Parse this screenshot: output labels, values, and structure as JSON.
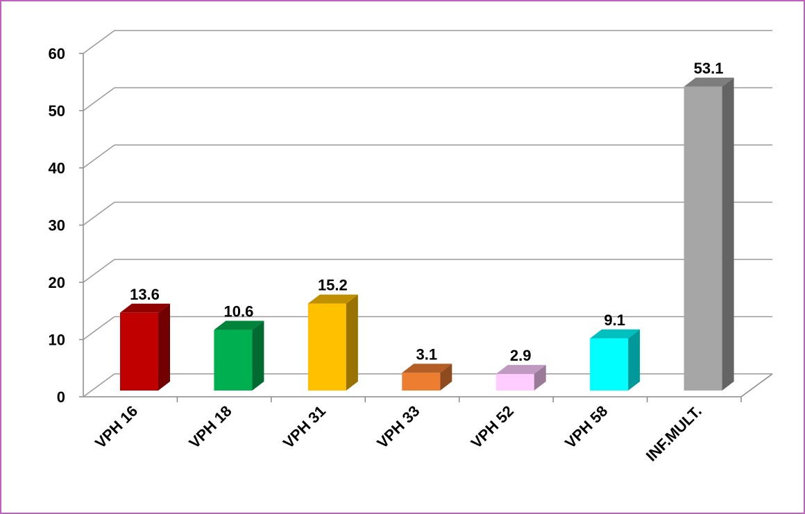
{
  "chart_data": {
    "type": "bar3d",
    "categories": [
      "VPH 16",
      "VPH 18",
      "VPH 31",
      "VPH 33",
      "VPH 52",
      "VPH 58",
      "INF.MULT."
    ],
    "values": [
      13.6,
      10.6,
      15.2,
      3.1,
      2.9,
      9.1,
      53.1
    ],
    "colors": [
      "#c00000",
      "#00b050",
      "#ffc000",
      "#ed7d31",
      "#ffccff",
      "#00ffff",
      "#a6a6a6"
    ],
    "ylim": [
      0,
      60
    ],
    "yticks": [
      0,
      10,
      20,
      30,
      40,
      50,
      60
    ],
    "grid": true
  }
}
